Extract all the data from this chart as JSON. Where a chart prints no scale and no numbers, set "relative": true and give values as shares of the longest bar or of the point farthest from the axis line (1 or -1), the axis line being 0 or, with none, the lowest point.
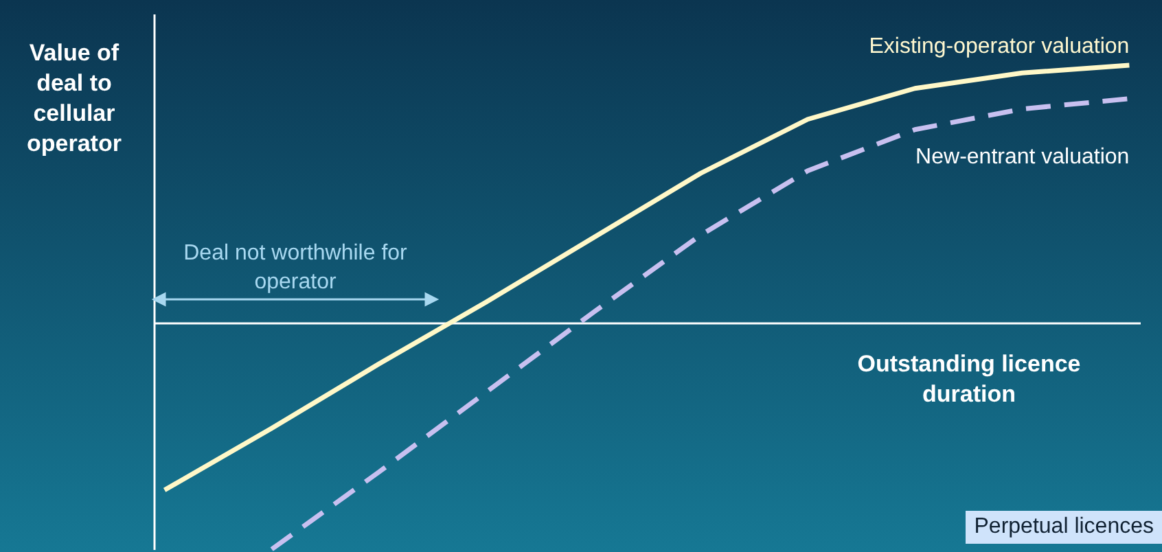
{
  "chart_data": {
    "type": "line",
    "relative": true,
    "ylabel": "Value of deal to cellular operator",
    "xlabel": "Outstanding licence duration",
    "categories": [
      null,
      null,
      null,
      null,
      null,
      null,
      null,
      null,
      null,
      null
    ],
    "series": [
      {
        "name": "Existing-operator valuation",
        "color": "#fff8c8",
        "line_style": "solid",
        "values": [
          -0.65,
          -0.41,
          -0.16,
          0.08,
          0.33,
          0.58,
          0.79,
          0.91,
          0.97,
          1
        ]
      },
      {
        "name": "New-entrant valuation",
        "color": "#c8c0f0",
        "line_style": "dashed",
        "values": [
          null,
          -0.88,
          -0.58,
          -0.27,
          0.04,
          0.34,
          0.59,
          0.75,
          0.83,
          0.87
        ]
      }
    ],
    "legend": false,
    "marker": "none",
    "annotations": [
      "Deal not worthwhile for operator",
      "Perpetual licences"
    ]
  }
}
